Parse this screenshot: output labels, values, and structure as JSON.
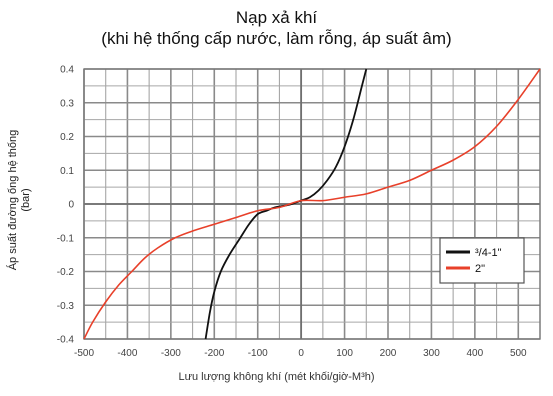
{
  "chart": {
    "title_line1": "Nạp xả khí",
    "title_line2": "(khi hệ thống cấp nước, làm rỗng, áp suất âm)",
    "ylabel_line1": "Áp suất đường ống hệ thống",
    "ylabel_line2": "(bar)",
    "xlabel": "Lưu lượng không khí (mét khối/giờ-M³h)"
  },
  "chart_data": {
    "type": "line",
    "title": "Nạp xả khí (khi hệ thống cấp nước, làm rỗng, áp suất âm)",
    "xlabel": "Lưu lượng không khí (mét khối/giờ-M³h)",
    "ylabel": "Áp suất đường ống hệ thống (bar)",
    "xlim": [
      -500,
      550
    ],
    "ylim": [
      -0.4,
      0.4
    ],
    "xticks": [
      -500,
      -400,
      -300,
      -200,
      -100,
      0,
      100,
      200,
      300,
      400,
      500
    ],
    "yticks": [
      0.4,
      0.3,
      0.2,
      0.1,
      0,
      -0.1,
      -0.2,
      -0.3,
      -0.4
    ],
    "xtick_labels": [
      "-500",
      "-400",
      "-300",
      "-200",
      "-100",
      "0",
      "100",
      "200",
      "300",
      "400",
      "500"
    ],
    "ytick_labels": [
      "0.4",
      "0.3",
      "0.2",
      "0.1",
      "0",
      "-0.1",
      "-0.2",
      "-0.3",
      "-0.4"
    ],
    "grid": true,
    "legend_position": "right",
    "series": [
      {
        "name": "³/4-1\"",
        "color": "#111111",
        "points": [
          [
            -220,
            -0.4
          ],
          [
            -210,
            -0.32
          ],
          [
            -200,
            -0.26
          ],
          [
            -185,
            -0.2
          ],
          [
            -165,
            -0.15
          ],
          [
            -140,
            -0.1
          ],
          [
            -120,
            -0.06
          ],
          [
            -100,
            -0.03
          ],
          [
            -80,
            -0.02
          ],
          [
            -60,
            -0.01
          ],
          [
            -30,
            -0.003
          ],
          [
            0,
            0.01
          ],
          [
            20,
            0.02
          ],
          [
            40,
            0.04
          ],
          [
            60,
            0.07
          ],
          [
            80,
            0.11
          ],
          [
            100,
            0.17
          ],
          [
            120,
            0.25
          ],
          [
            140,
            0.35
          ],
          [
            150,
            0.4
          ]
        ]
      },
      {
        "name": "2\"",
        "color": "#e8402a",
        "points": [
          [
            -500,
            -0.4
          ],
          [
            -480,
            -0.35
          ],
          [
            -450,
            -0.29
          ],
          [
            -420,
            -0.24
          ],
          [
            -390,
            -0.2
          ],
          [
            -360,
            -0.16
          ],
          [
            -330,
            -0.13
          ],
          [
            -290,
            -0.1
          ],
          [
            -250,
            -0.08
          ],
          [
            -200,
            -0.06
          ],
          [
            -150,
            -0.04
          ],
          [
            -100,
            -0.02
          ],
          [
            -50,
            -0.01
          ],
          [
            0,
            0.01
          ],
          [
            50,
            0.01
          ],
          [
            100,
            0.02
          ],
          [
            150,
            0.03
          ],
          [
            200,
            0.05
          ],
          [
            250,
            0.07
          ],
          [
            300,
            0.1
          ],
          [
            350,
            0.13
          ],
          [
            400,
            0.17
          ],
          [
            450,
            0.23
          ],
          [
            500,
            0.31
          ],
          [
            550,
            0.4
          ]
        ]
      }
    ]
  }
}
